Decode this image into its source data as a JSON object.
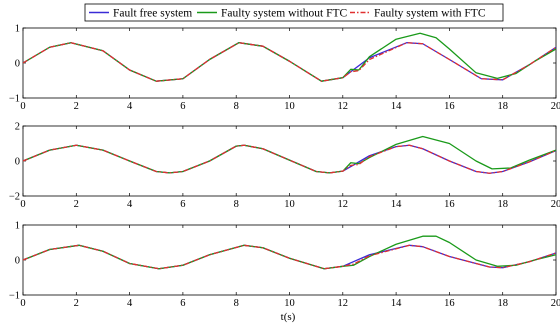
{
  "chart_data": [
    {
      "type": "line",
      "title": "",
      "xlabel": "",
      "ylabel": "",
      "xlim": [
        0,
        20
      ],
      "ylim": [
        -1,
        1
      ],
      "x_ticks": [
        "0",
        "2",
        "4",
        "6",
        "8",
        "10",
        "12",
        "14",
        "16",
        "18",
        "20"
      ],
      "y_ticks": [
        "1",
        "0",
        "−1"
      ],
      "legend": {
        "placement": "top-center",
        "entries": [
          {
            "label": "Fault free system",
            "color": "#3a2bd6",
            "style": "solid"
          },
          {
            "label": "Faulty system without FTC",
            "color": "#1a9a1a",
            "style": "solid"
          },
          {
            "label": "Faulty system with FTC",
            "color": "#e03030",
            "style": "dash-dot"
          }
        ]
      },
      "series": [
        {
          "name": "Fault free system",
          "color": "#3a2bd6",
          "x": [
            0,
            1,
            1.8,
            3,
            4,
            5,
            6,
            7,
            8.1,
            9,
            10,
            11.2,
            12,
            13,
            14.4,
            15,
            16,
            17.2,
            18,
            19,
            20
          ],
          "y": [
            0,
            0.45,
            0.58,
            0.35,
            -0.2,
            -0.52,
            -0.45,
            0.1,
            0.58,
            0.48,
            0.05,
            -0.52,
            -0.42,
            0.15,
            0.58,
            0.55,
            0.1,
            -0.45,
            -0.48,
            -0.05,
            0.45
          ]
        },
        {
          "name": "Faulty system without FTC",
          "color": "#1a9a1a",
          "x": [
            0,
            1,
            1.8,
            3,
            4,
            5,
            6,
            7,
            8.1,
            9,
            10,
            11.2,
            12,
            12.3,
            12.6,
            13,
            14,
            14.9,
            15.5,
            16,
            17,
            17.8,
            18.5,
            19.2,
            20
          ],
          "y": [
            0,
            0.45,
            0.58,
            0.35,
            -0.2,
            -0.52,
            -0.45,
            0.1,
            0.58,
            0.48,
            0.05,
            -0.52,
            -0.42,
            -0.18,
            -0.2,
            0.18,
            0.68,
            0.85,
            0.72,
            0.4,
            -0.28,
            -0.44,
            -0.3,
            0.05,
            0.4
          ]
        },
        {
          "name": "Faulty system with FTC",
          "color": "#e03030",
          "x": [
            0,
            1,
            1.8,
            3,
            4,
            5,
            6,
            7,
            8.1,
            9,
            10,
            11.2,
            12,
            12.3,
            12.6,
            13,
            14.4,
            15,
            16,
            17.2,
            18,
            19,
            20
          ],
          "y": [
            0,
            0.45,
            0.58,
            0.35,
            -0.2,
            -0.52,
            -0.45,
            0.1,
            0.58,
            0.48,
            0.05,
            -0.52,
            -0.42,
            -0.25,
            -0.22,
            0.1,
            0.58,
            0.55,
            0.1,
            -0.45,
            -0.48,
            -0.05,
            0.45
          ]
        }
      ]
    },
    {
      "type": "line",
      "title": "",
      "xlabel": "",
      "ylabel": "",
      "xlim": [
        0,
        20
      ],
      "ylim": [
        -2,
        2
      ],
      "x_ticks": [
        "0",
        "2",
        "4",
        "6",
        "8",
        "10",
        "12",
        "14",
        "16",
        "18",
        "20"
      ],
      "y_ticks": [
        "2",
        "0",
        "−2"
      ],
      "series": [
        {
          "name": "Fault free system",
          "color": "#3a2bd6",
          "x": [
            0,
            1,
            2,
            3,
            4,
            5,
            5.5,
            6,
            7,
            8,
            8.3,
            9,
            10,
            11,
            11.5,
            12,
            13,
            14,
            14.5,
            15,
            16,
            17,
            17.5,
            18,
            19,
            20
          ],
          "y": [
            0,
            0.62,
            0.9,
            0.62,
            0.0,
            -0.6,
            -0.68,
            -0.6,
            0.0,
            0.85,
            0.9,
            0.7,
            0.05,
            -0.6,
            -0.68,
            -0.58,
            0.3,
            0.82,
            0.9,
            0.7,
            0.0,
            -0.6,
            -0.7,
            -0.6,
            -0.05,
            0.6
          ]
        },
        {
          "name": "Faulty system without FTC",
          "color": "#1a9a1a",
          "x": [
            0,
            1,
            2,
            3,
            4,
            5,
            5.5,
            6,
            7,
            8,
            8.3,
            9,
            10,
            11,
            11.5,
            12,
            12.3,
            12.6,
            13,
            14,
            15,
            16,
            17,
            17.6,
            18.3,
            19,
            20
          ],
          "y": [
            0,
            0.62,
            0.9,
            0.62,
            0.0,
            -0.6,
            -0.68,
            -0.6,
            0.0,
            0.85,
            0.9,
            0.7,
            0.05,
            -0.6,
            -0.68,
            -0.58,
            -0.1,
            -0.15,
            0.2,
            0.95,
            1.4,
            1.0,
            0.0,
            -0.45,
            -0.4,
            0.05,
            0.62
          ]
        },
        {
          "name": "Faulty system with FTC",
          "color": "#e03030",
          "x": [
            0,
            1,
            2,
            3,
            4,
            5,
            5.5,
            6,
            7,
            8,
            8.3,
            9,
            10,
            11,
            11.5,
            12,
            12.3,
            12.6,
            13,
            14,
            14.5,
            15,
            16,
            17,
            17.5,
            18,
            19,
            20
          ],
          "y": [
            0,
            0.62,
            0.9,
            0.62,
            0.0,
            -0.6,
            -0.68,
            -0.6,
            0.0,
            0.85,
            0.9,
            0.7,
            0.05,
            -0.6,
            -0.68,
            -0.58,
            -0.25,
            -0.2,
            0.25,
            0.82,
            0.9,
            0.7,
            0.0,
            -0.6,
            -0.7,
            -0.6,
            -0.05,
            0.6
          ]
        }
      ]
    },
    {
      "type": "line",
      "title": "",
      "xlabel": "t(s)",
      "ylabel": "",
      "xlim": [
        0,
        20
      ],
      "ylim": [
        -1,
        1
      ],
      "x_ticks": [
        "0",
        "2",
        "4",
        "6",
        "8",
        "10",
        "12",
        "14",
        "16",
        "18",
        "20"
      ],
      "y_ticks": [
        "1",
        "0",
        "−1"
      ],
      "series": [
        {
          "name": "Fault free system",
          "color": "#3a2bd6",
          "x": [
            0,
            1,
            2.1,
            3,
            4,
            5.1,
            6,
            7,
            8.3,
            9,
            10,
            11.3,
            12,
            13,
            14.5,
            15,
            16,
            17.5,
            18,
            19,
            20
          ],
          "y": [
            0,
            0.3,
            0.42,
            0.25,
            -0.1,
            -0.25,
            -0.15,
            0.15,
            0.42,
            0.35,
            0.05,
            -0.25,
            -0.18,
            0.15,
            0.42,
            0.38,
            0.1,
            -0.2,
            -0.22,
            -0.05,
            0.2
          ]
        },
        {
          "name": "Faulty system without FTC",
          "color": "#1a9a1a",
          "x": [
            0,
            1,
            2.1,
            3,
            4,
            5.1,
            6,
            7,
            8.3,
            9,
            10,
            11.3,
            12,
            12.4,
            13,
            14,
            15,
            15.5,
            16,
            17,
            17.8,
            18.5,
            19.2,
            20
          ],
          "y": [
            0,
            0.3,
            0.42,
            0.25,
            -0.1,
            -0.25,
            -0.15,
            0.15,
            0.42,
            0.35,
            0.05,
            -0.25,
            -0.18,
            -0.15,
            0.1,
            0.45,
            0.68,
            0.68,
            0.5,
            0.0,
            -0.18,
            -0.15,
            0.0,
            0.15
          ]
        },
        {
          "name": "Faulty system with FTC",
          "color": "#e03030",
          "x": [
            0,
            1,
            2.1,
            3,
            4,
            5.1,
            6,
            7,
            8.3,
            9,
            10,
            11.3,
            12,
            12.4,
            13,
            14.5,
            15,
            16,
            17.5,
            18,
            19,
            20
          ],
          "y": [
            0,
            0.3,
            0.42,
            0.25,
            -0.1,
            -0.25,
            -0.15,
            0.15,
            0.42,
            0.35,
            0.05,
            -0.25,
            -0.18,
            -0.12,
            0.12,
            0.42,
            0.38,
            0.1,
            -0.2,
            -0.22,
            -0.05,
            0.2
          ]
        }
      ]
    }
  ]
}
